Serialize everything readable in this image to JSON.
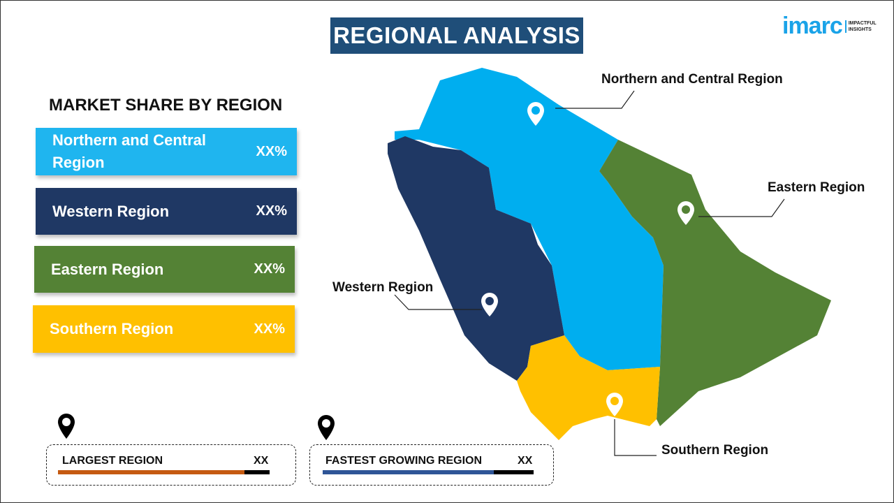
{
  "title": "REGIONAL ANALYSIS",
  "logo": {
    "brand": "imarc",
    "tagline_1": "IMPACTFUL",
    "tagline_2": "INSIGHTS"
  },
  "market_share": {
    "title": "MARKET SHARE BY REGION",
    "items": [
      {
        "label": "Northern and Central Region",
        "value": "XX%",
        "color": "#1fb5ef"
      },
      {
        "label": "Western Region",
        "value": "XX%",
        "color": "#1f3864"
      },
      {
        "label": "Eastern Region",
        "value": "XX%",
        "color": "#548235"
      },
      {
        "label": "Southern Region",
        "value": "XX%",
        "color": "#ffc000"
      }
    ]
  },
  "summary": {
    "largest": {
      "label": "LARGEST REGION",
      "value": "XX",
      "fill_fraction": 0.88,
      "color": "#c55a11"
    },
    "fastest": {
      "label": "FASTEST  GROWING REGION",
      "value": "XX",
      "fill_fraction": 0.81,
      "color": "#2f5597"
    }
  },
  "map": {
    "labels": {
      "north": "Northern and Central Region",
      "east": "Eastern Region",
      "west": "Western Region",
      "south": "Southern Region"
    },
    "colors": {
      "north": "#00aeef",
      "west": "#1f3864",
      "east": "#548235",
      "south": "#ffc000"
    }
  }
}
